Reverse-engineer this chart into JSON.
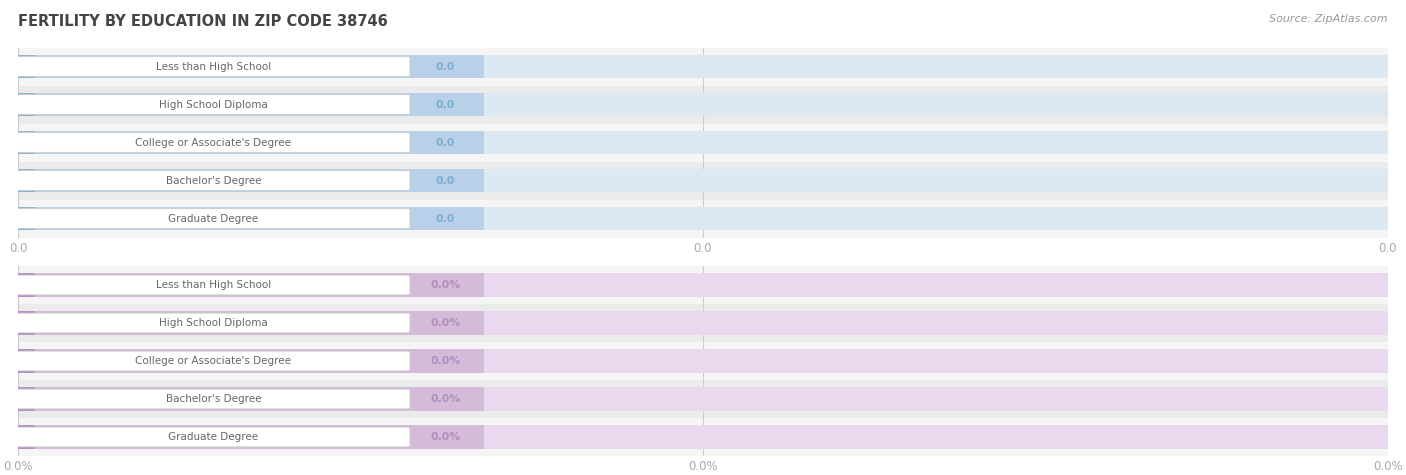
{
  "title": "FERTILITY BY EDUCATION IN ZIP CODE 38746",
  "source": "Source: ZipAtlas.com",
  "categories": [
    "Less than High School",
    "High School Diploma",
    "College or Associate's Degree",
    "Bachelor's Degree",
    "Graduate Degree"
  ],
  "top_values": [
    0.0,
    0.0,
    0.0,
    0.0,
    0.0
  ],
  "bottom_values": [
    0.0,
    0.0,
    0.0,
    0.0,
    0.0
  ],
  "top_bar_color": "#b8d0e8",
  "top_bar_darker": "#8ab4d4",
  "top_bar_bg": "#dce8f2",
  "bottom_bar_color": "#d4bcd8",
  "bottom_bar_darker": "#b890c4",
  "bottom_bar_bg": "#ead8ee",
  "row_even_color": "#f5f5f5",
  "row_odd_color": "#ebebeb",
  "tick_label_color": "#aaaaaa",
  "title_color": "#444444",
  "source_color": "#999999",
  "xticks_top_labels": [
    "0.0",
    "0.0",
    "0.0"
  ],
  "xticks_bottom_labels": [
    "0.0%",
    "0.0%",
    "0.0%"
  ],
  "background_color": "#ffffff",
  "grid_color": "#cccccc",
  "pill_edge_color": "#cccccc",
  "label_text_color": "#666666",
  "value_text_color_top": "#7aaed0",
  "value_text_color_bottom": "#b090c0"
}
